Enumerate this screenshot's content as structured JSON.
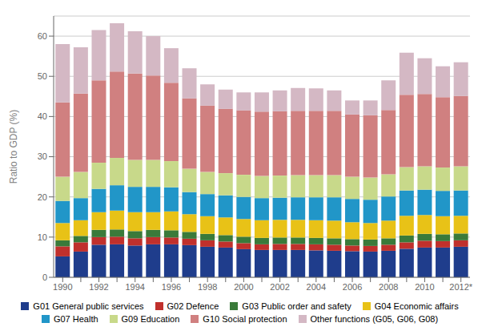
{
  "chart_data": {
    "type": "bar",
    "stacked": true,
    "grid": true,
    "legend": "bottom",
    "ylabel": "Ratio to GDP (%)",
    "ylim": [
      0,
      65
    ],
    "yticks": [
      0,
      10,
      20,
      30,
      40,
      50,
      60
    ],
    "categories": [
      "1990",
      null,
      "1992",
      null,
      "1994",
      null,
      "1996",
      null,
      "1998",
      null,
      "2000",
      null,
      "2002",
      null,
      "2004",
      null,
      "2006",
      null,
      "2008",
      null,
      "2010",
      null,
      "2012*"
    ],
    "series": [
      {
        "name": "G01 General public services",
        "color": "#1f3d8c",
        "values": [
          5.2,
          6.4,
          8.1,
          8.2,
          7.9,
          8.2,
          8.2,
          8.0,
          7.6,
          7.4,
          7.0,
          6.8,
          6.8,
          6.8,
          6.7,
          6.6,
          6.5,
          6.4,
          6.6,
          7.1,
          7.4,
          7.4,
          7.6
        ]
      },
      {
        "name": "G02 Defence",
        "color": "#c0302c",
        "values": [
          2.5,
          2.3,
          1.9,
          1.9,
          1.8,
          1.8,
          1.7,
          1.6,
          1.6,
          1.5,
          1.5,
          1.4,
          1.5,
          1.5,
          1.5,
          1.5,
          1.4,
          1.4,
          1.5,
          1.6,
          1.7,
          1.6,
          1.6
        ]
      },
      {
        "name": "G03 Public order and safety",
        "color": "#3a7a3a",
        "values": [
          1.5,
          1.6,
          1.8,
          1.8,
          1.8,
          1.8,
          1.8,
          1.7,
          1.6,
          1.6,
          1.6,
          1.6,
          1.6,
          1.6,
          1.6,
          1.6,
          1.6,
          1.6,
          1.6,
          1.7,
          1.7,
          1.7,
          1.7
        ]
      },
      {
        "name": "G04 Economic affairs",
        "color": "#e8c217",
        "values": [
          4.3,
          3.9,
          4.4,
          4.7,
          4.7,
          4.4,
          4.7,
          4.4,
          4.4,
          4.4,
          4.4,
          4.4,
          4.4,
          4.4,
          4.4,
          4.4,
          4.2,
          4.1,
          4.4,
          4.9,
          4.7,
          4.5,
          4.4
        ]
      },
      {
        "name": "G07 Health",
        "color": "#2196c8",
        "values": [
          5.5,
          5.5,
          5.8,
          6.3,
          6.3,
          6.3,
          6.0,
          5.5,
          5.5,
          5.5,
          5.5,
          5.5,
          5.5,
          5.6,
          5.7,
          5.8,
          5.8,
          5.8,
          6.0,
          6.3,
          6.3,
          6.3,
          6.3
        ]
      },
      {
        "name": "G09 Education",
        "color": "#c8d98a",
        "values": [
          6.0,
          6.5,
          6.5,
          6.8,
          6.7,
          6.7,
          6.5,
          5.8,
          5.5,
          5.5,
          5.5,
          5.5,
          5.5,
          5.5,
          5.5,
          5.5,
          5.5,
          5.5,
          5.5,
          5.8,
          5.8,
          5.8,
          6.0
        ]
      },
      {
        "name": "G10 Social protection",
        "color": "#d08080",
        "values": [
          18.5,
          19.5,
          20.5,
          21.5,
          21.5,
          21.0,
          19.5,
          17.5,
          16.5,
          16.0,
          16.0,
          16.0,
          16.0,
          16.0,
          16.0,
          16.0,
          15.5,
          15.5,
          16.0,
          18.0,
          18.0,
          17.5,
          17.5
        ]
      },
      {
        "name": "Other functions (G05, G06, G08)",
        "color": "#d4b8c4",
        "values": [
          14.5,
          11.5,
          12.5,
          12.0,
          10.5,
          9.8,
          8.6,
          7.5,
          5.3,
          4.8,
          4.5,
          4.8,
          5.2,
          5.7,
          5.6,
          5.1,
          3.5,
          3.7,
          7.4,
          10.5,
          8.9,
          7.7,
          8.4
        ]
      }
    ]
  }
}
